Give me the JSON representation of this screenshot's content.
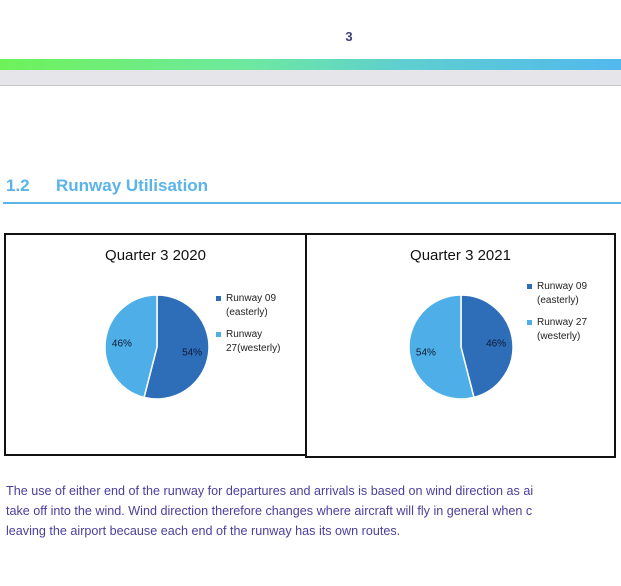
{
  "header": {
    "page_number": "3"
  },
  "section": {
    "number": "1.2",
    "title": "Runway Utilisation"
  },
  "colors": {
    "runway09": "#2e6db8",
    "runway27": "#4eaee8",
    "heading": "#5ab4ea",
    "body_text": "#4b3f9c"
  },
  "chart_data": [
    {
      "type": "pie",
      "title": "Quarter 3 2020",
      "labels": [
        "Runway 09 (easterly)",
        "Runway 27(westerly)"
      ],
      "values": [
        54,
        46
      ],
      "data_labels": [
        "54%",
        "46%"
      ],
      "legend": "right"
    },
    {
      "type": "pie",
      "title": "Quarter 3 2021",
      "labels": [
        "Runway 09 (easterly)",
        "Runway 27 (westerly)"
      ],
      "values": [
        46,
        54
      ],
      "data_labels": [
        "46%",
        "54%"
      ],
      "legend": "right"
    }
  ],
  "body": {
    "lines": [
      "The use of either end of the runway for departures and arrivals is based on wind direction as ai",
      "take off into the wind. Wind direction therefore changes where aircraft will fly in general when c",
      "leaving the airport because each end of the runway has its own routes."
    ]
  }
}
